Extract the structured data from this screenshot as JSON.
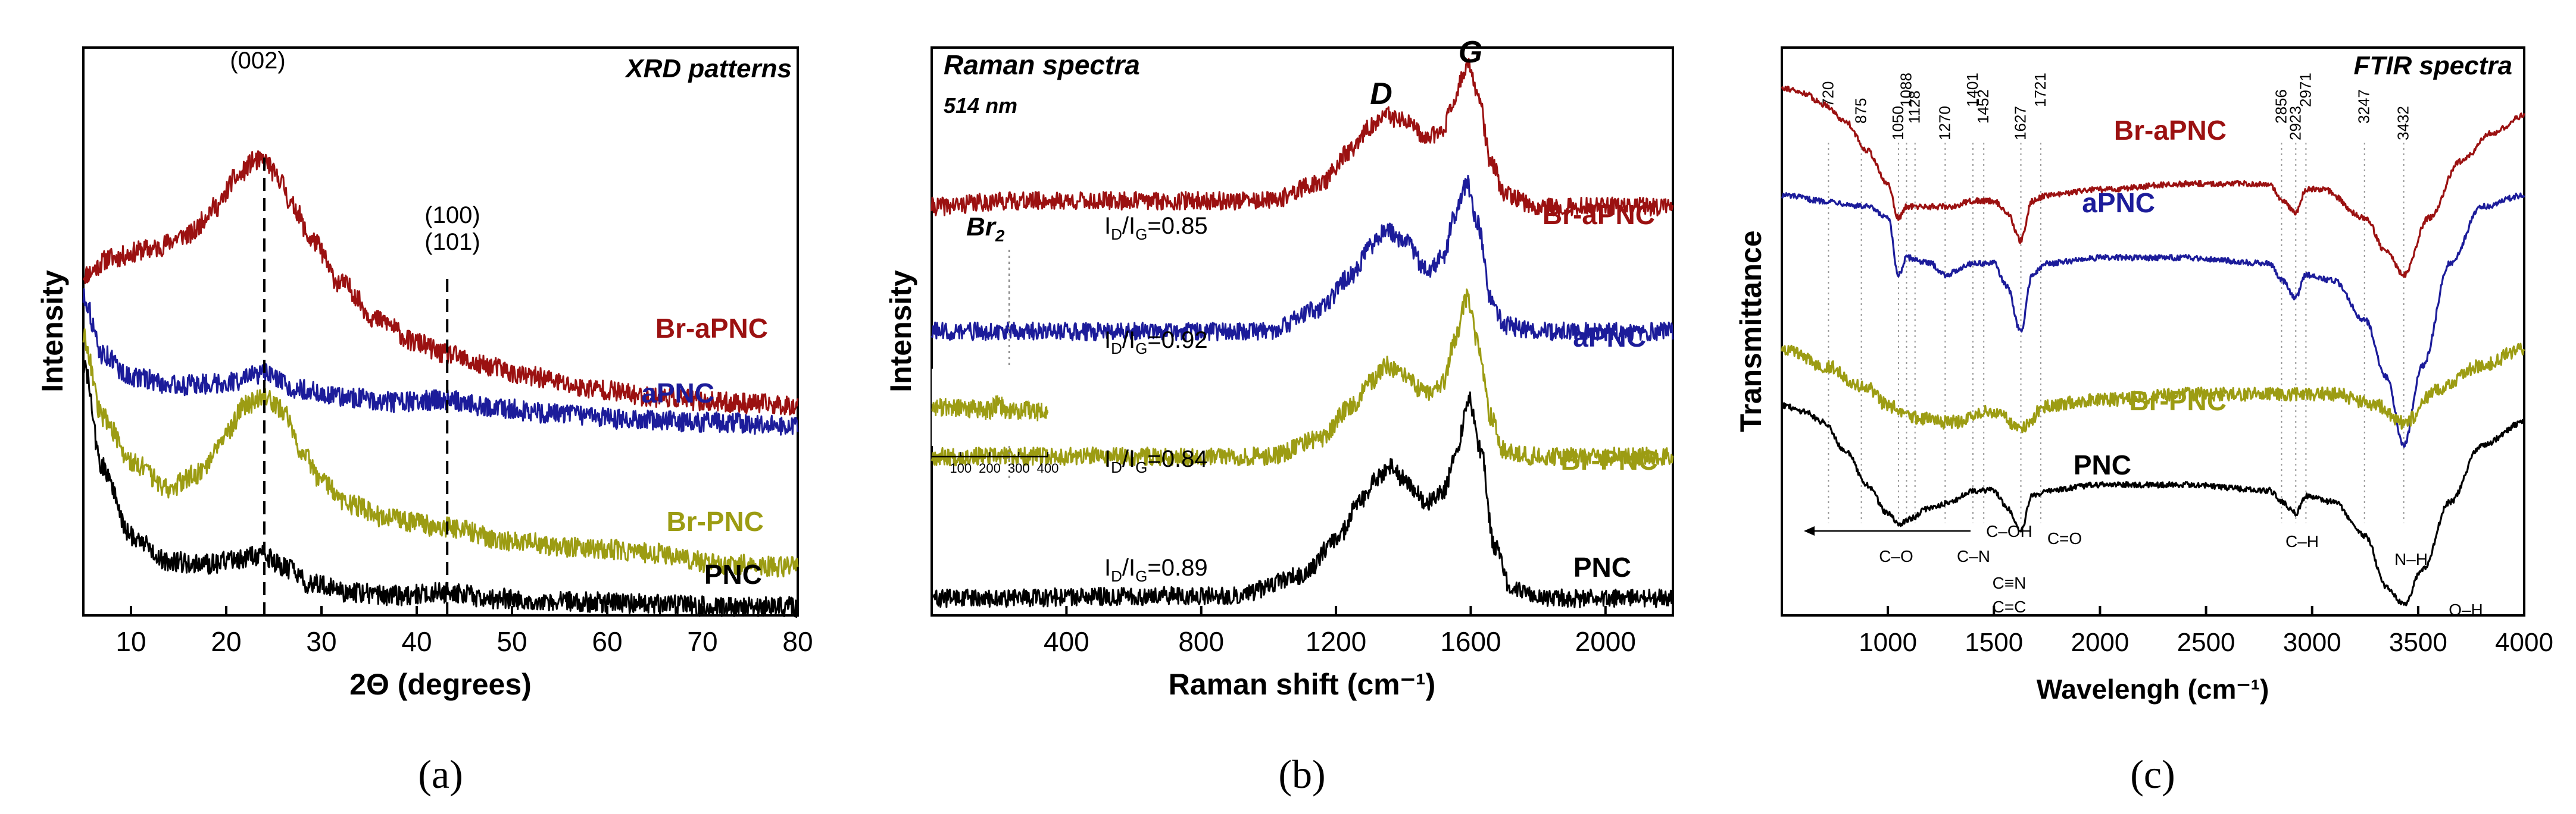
{
  "colors": {
    "Br-aPNC": "#9b1111",
    "aPNC": "#1c1c9a",
    "Br-PNC": "#9c9c13",
    "PNC": "#000000"
  },
  "chart_data": [
    {
      "type": "line",
      "panel": "(a)",
      "title": "XRD patterns",
      "xlabel": "2Θ (degrees)",
      "ylabel": "Intensity",
      "xlim": [
        5,
        80
      ],
      "xticks": [
        10,
        20,
        30,
        40,
        50,
        60,
        70,
        80
      ],
      "y_axis_values": "arbitrary units (offset stacked)",
      "series": [
        {
          "name": "Br-aPNC",
          "x": [
            5,
            8,
            12,
            16,
            19,
            21,
            23,
            24,
            25.5,
            27,
            29,
            32,
            36,
            40,
            43,
            47,
            52,
            58,
            65,
            72,
            80
          ],
          "y": [
            0.6,
            0.63,
            0.645,
            0.67,
            0.72,
            0.77,
            0.8,
            0.8,
            0.77,
            0.72,
            0.66,
            0.585,
            0.52,
            0.48,
            0.46,
            0.44,
            0.42,
            0.4,
            0.385,
            0.375,
            0.37
          ]
        },
        {
          "name": "aPNC",
          "x": [
            5,
            7,
            10,
            15,
            20,
            24,
            27,
            32,
            38,
            43,
            48,
            55,
            62,
            70,
            80
          ],
          "y": [
            0.56,
            0.46,
            0.42,
            0.405,
            0.41,
            0.425,
            0.4,
            0.385,
            0.375,
            0.38,
            0.365,
            0.355,
            0.345,
            0.34,
            0.335
          ]
        },
        {
          "name": "Br-PNC",
          "x": [
            5,
            7,
            10,
            14,
            17,
            20,
            22,
            24,
            26,
            28,
            30,
            33,
            37,
            43,
            50,
            57,
            65,
            72,
            80
          ],
          "y": [
            0.49,
            0.35,
            0.27,
            0.225,
            0.25,
            0.32,
            0.37,
            0.385,
            0.36,
            0.29,
            0.235,
            0.195,
            0.17,
            0.155,
            0.13,
            0.12,
            0.11,
            0.09,
            0.085
          ]
        },
        {
          "name": "PNC",
          "x": [
            5,
            7,
            10,
            14,
            18,
            21,
            24,
            26,
            29,
            33,
            38,
            43,
            48,
            55,
            65,
            72,
            80
          ],
          "y": [
            0.44,
            0.26,
            0.14,
            0.095,
            0.09,
            0.1,
            0.105,
            0.085,
            0.055,
            0.04,
            0.035,
            0.04,
            0.03,
            0.025,
            0.02,
            0.015,
            0.015
          ]
        }
      ],
      "peak_markers": [
        24,
        43.2
      ],
      "annotations": [
        "(002)",
        "(100)",
        "(101)"
      ]
    },
    {
      "type": "line",
      "panel": "(b)",
      "title": "Raman spectra",
      "subtitle": "514 nm",
      "xlabel": "Raman shift (cm⁻¹)",
      "ylabel": "Intensity",
      "xlim": [
        0,
        2200
      ],
      "xticks": [
        400,
        800,
        1200,
        1600,
        2000
      ],
      "peaks": {
        "D": 1350,
        "G": 1590
      },
      "ratios": [
        {
          "series": "Br-aPNC",
          "label": "I_D/I_G=0.85"
        },
        {
          "series": "aPNC",
          "label": "I_D/I_G=0.92"
        },
        {
          "series": "Br-PNC",
          "label": "I_D/I_G=0.84"
        },
        {
          "series": "PNC",
          "label": "I_D/I_G=0.89"
        }
      ],
      "br2_band": 230,
      "inset": {
        "xticks": [
          100,
          200,
          300,
          400
        ]
      },
      "annotations": [
        "D",
        "G",
        "Br",
        "2"
      ],
      "series": [
        {
          "name": "Br-aPNC",
          "x": [
            0,
            230,
            1000,
            1150,
            1250,
            1300,
            1350,
            1400,
            1470,
            1520,
            1550,
            1590,
            1620,
            1660,
            1700,
            1800,
            2200
          ],
          "y": [
            0.72,
            0.73,
            0.73,
            0.76,
            0.82,
            0.86,
            0.88,
            0.87,
            0.84,
            0.86,
            0.91,
            0.97,
            0.92,
            0.8,
            0.74,
            0.72,
            0.72
          ]
        },
        {
          "name": "aPNC",
          "x": [
            0,
            1000,
            1150,
            1250,
            1300,
            1350,
            1400,
            1470,
            1520,
            1550,
            1590,
            1620,
            1660,
            1700,
            1800,
            2200
          ],
          "y": [
            0.5,
            0.5,
            0.54,
            0.6,
            0.65,
            0.68,
            0.66,
            0.61,
            0.63,
            0.7,
            0.76,
            0.69,
            0.56,
            0.51,
            0.5,
            0.5
          ]
        },
        {
          "name": "Br-PNC",
          "x": [
            0,
            1000,
            1150,
            1250,
            1300,
            1350,
            1400,
            1470,
            1520,
            1550,
            1590,
            1620,
            1660,
            1700,
            1800,
            2200
          ],
          "y": [
            0.28,
            0.28,
            0.31,
            0.37,
            0.41,
            0.44,
            0.42,
            0.39,
            0.41,
            0.48,
            0.56,
            0.48,
            0.35,
            0.29,
            0.28,
            0.28
          ]
        },
        {
          "name": "PNC",
          "x": [
            0,
            900,
            1100,
            1200,
            1270,
            1320,
            1360,
            1400,
            1470,
            1520,
            1560,
            1595,
            1630,
            1670,
            1720,
            1800,
            2200
          ],
          "y": [
            0.03,
            0.035,
            0.07,
            0.13,
            0.2,
            0.24,
            0.26,
            0.24,
            0.2,
            0.22,
            0.3,
            0.38,
            0.29,
            0.12,
            0.05,
            0.03,
            0.03
          ]
        }
      ]
    },
    {
      "type": "line",
      "panel": "(c)",
      "title": "FTIR spectra",
      "xlabel": "Wavelengh (cm⁻¹)",
      "ylabel": "Transmittance",
      "xlim": [
        500,
        4000
      ],
      "xticks": [
        1000,
        1500,
        2000,
        2500,
        3000,
        3500,
        4000
      ],
      "peak_positions": [
        "720",
        "875",
        "1050",
        "1088",
        "1128",
        "1270",
        "1401",
        "1452",
        "1627",
        "1721",
        "2856",
        "2923",
        "2971",
        "3247",
        "3432"
      ],
      "bond_labels": [
        "C–O",
        "C–OH",
        "C–N",
        "C≡N",
        "C=C",
        "C=O",
        "C–H",
        "N–H",
        "O–H"
      ],
      "series": [
        {
          "name": "Br-aPNC",
          "x": [
            500,
            600,
            700,
            800,
            900,
            1000,
            1050,
            1090,
            1200,
            1300,
            1400,
            1500,
            1560,
            1627,
            1680,
            1750,
            2000,
            2400,
            2800,
            2856,
            2923,
            2971,
            3050,
            3250,
            3350,
            3432,
            3550,
            3700,
            3850,
            4000
          ],
          "y": [
            0.93,
            0.92,
            0.9,
            0.87,
            0.82,
            0.76,
            0.7,
            0.72,
            0.72,
            0.72,
            0.73,
            0.73,
            0.71,
            0.66,
            0.73,
            0.74,
            0.75,
            0.76,
            0.76,
            0.73,
            0.71,
            0.75,
            0.75,
            0.7,
            0.64,
            0.6,
            0.7,
            0.8,
            0.85,
            0.88
          ]
        },
        {
          "name": "aPNC",
          "x": [
            500,
            700,
            900,
            1000,
            1050,
            1090,
            1200,
            1270,
            1400,
            1500,
            1560,
            1627,
            1680,
            1750,
            2000,
            2400,
            2800,
            2856,
            2923,
            2971,
            3100,
            3250,
            3350,
            3432,
            3520,
            3650,
            3800,
            4000
          ],
          "y": [
            0.74,
            0.73,
            0.72,
            0.7,
            0.6,
            0.63,
            0.62,
            0.6,
            0.62,
            0.62,
            0.58,
            0.5,
            0.6,
            0.62,
            0.63,
            0.63,
            0.62,
            0.59,
            0.56,
            0.6,
            0.59,
            0.52,
            0.42,
            0.3,
            0.44,
            0.62,
            0.72,
            0.74
          ]
        },
        {
          "name": "Br-PNC",
          "x": [
            500,
            700,
            900,
            1000,
            1100,
            1300,
            1500,
            1627,
            1750,
            2000,
            2500,
            2900,
            3100,
            3300,
            3432,
            3600,
            3800,
            4000
          ],
          "y": [
            0.47,
            0.44,
            0.4,
            0.37,
            0.35,
            0.34,
            0.36,
            0.33,
            0.37,
            0.38,
            0.39,
            0.39,
            0.39,
            0.37,
            0.34,
            0.4,
            0.44,
            0.47
          ]
        },
        {
          "name": "PNC",
          "x": [
            500,
            600,
            700,
            800,
            900,
            1000,
            1050,
            1100,
            1200,
            1300,
            1400,
            1500,
            1560,
            1627,
            1680,
            1750,
            2000,
            2400,
            2800,
            2856,
            2923,
            2971,
            3100,
            3250,
            3350,
            3432,
            3520,
            3650,
            3800,
            4000
          ],
          "y": [
            0.37,
            0.36,
            0.34,
            0.29,
            0.23,
            0.18,
            0.16,
            0.17,
            0.19,
            0.2,
            0.22,
            0.22,
            0.19,
            0.15,
            0.21,
            0.22,
            0.23,
            0.23,
            0.22,
            0.2,
            0.18,
            0.21,
            0.2,
            0.14,
            0.05,
            0.02,
            0.08,
            0.2,
            0.3,
            0.34
          ]
        }
      ]
    }
  ],
  "panel_a": {
    "title": "XRD patterns",
    "xlabel": "2Θ (degrees)",
    "ylabel": "Intensity",
    "ann_002": "(002)",
    "ann_100": "(100)",
    "ann_101": "(101)",
    "panel_label": "(a)"
  },
  "panel_b": {
    "title": "Raman spectra",
    "subtitle": "514 nm",
    "xlabel": "Raman shift (cm⁻¹)",
    "ylabel": "Intensity",
    "peak_d": "D",
    "peak_g": "G",
    "br2_main": "Br",
    "br2_sub": "2",
    "ratio_prefix_i": "I",
    "ratio_sub_d": "D",
    "ratio_slash": "/I",
    "ratio_sub_g": "G",
    "ratio_values": [
      "=0.85",
      "=0.92",
      "=0.84",
      "=0.89"
    ],
    "panel_label": "(b)"
  },
  "panel_c": {
    "title": "FTIR spectra",
    "xlabel": "Wavelengh (cm⁻¹)",
    "ylabel": "Transmittance",
    "panel_label": "(c)"
  }
}
